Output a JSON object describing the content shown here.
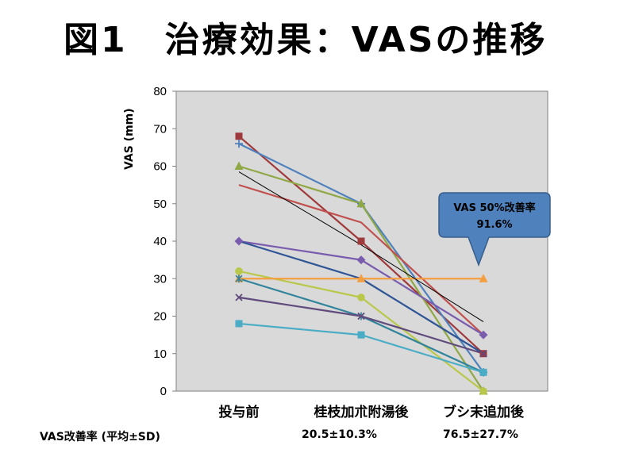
{
  "title": "図1　治療効果：VASの推移",
  "chart_data": {
    "type": "line",
    "categories": [
      "投与前",
      "桂枝加朮附湯後",
      "ブシ末追加後"
    ],
    "ylabel": "VAS (mm)",
    "ylim": [
      0,
      80
    ],
    "yticks": [
      0,
      10,
      20,
      30,
      40,
      50,
      60,
      70,
      80
    ],
    "grid": false,
    "series": [
      {
        "values": [
          68,
          40,
          10
        ],
        "color": "#a0393b",
        "marker": "square"
      },
      {
        "values": [
          66,
          50,
          5
        ],
        "color": "#4f81bd",
        "marker": "plus"
      },
      {
        "values": [
          60,
          50,
          0
        ],
        "color": "#8fa845",
        "marker": "triangle"
      },
      {
        "values": [
          55,
          45,
          15
        ],
        "color": "#c0504d",
        "marker": "none"
      },
      {
        "values": [
          40,
          35,
          15
        ],
        "color": "#7a5cae",
        "marker": "diamond"
      },
      {
        "values": [
          40,
          30,
          10
        ],
        "color": "#2f5597",
        "marker": "none"
      },
      {
        "values": [
          32,
          25,
          0
        ],
        "color": "#b9c84a",
        "marker": "circle"
      },
      {
        "values": [
          30,
          30,
          30
        ],
        "color": "#f59e40",
        "marker": "triangle"
      },
      {
        "values": [
          30,
          20,
          5
        ],
        "color": "#31849b",
        "marker": "cross"
      },
      {
        "values": [
          25,
          20,
          10
        ],
        "color": "#604a7b",
        "marker": "x"
      },
      {
        "values": [
          18,
          15,
          5
        ],
        "color": "#4bacc6",
        "marker": "square"
      },
      {
        "values": [
          58.5,
          39,
          18.5
        ],
        "color": "#000000",
        "marker": "none",
        "trendline": true
      }
    ],
    "callout": {
      "line1": "VAS 50%改善率",
      "line2": "91.6%",
      "fill": "#4f81bd",
      "stroke": "#385d8a"
    },
    "plot_bg": "#d9d9d9"
  },
  "stats": {
    "label": "VAS改善率 (平均±SD)",
    "values": [
      "20.5±10.3%",
      "76.5±27.7%"
    ]
  }
}
